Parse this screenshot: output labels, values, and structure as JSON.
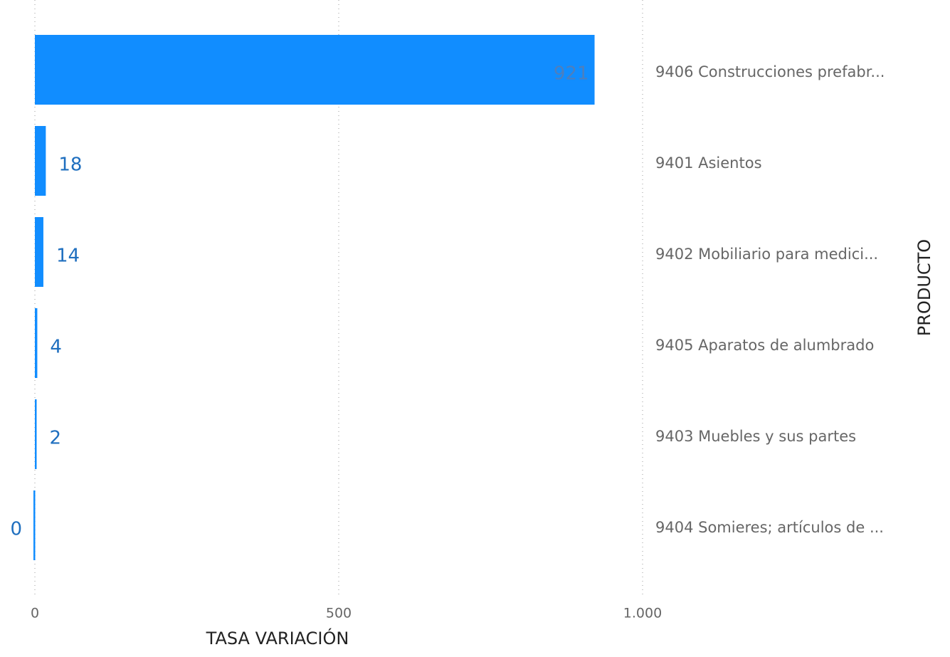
{
  "chart_data": {
    "type": "bar",
    "orientation": "horizontal",
    "categories": [
      "9406 Construcciones prefabr...",
      "9401 Asientos",
      "9402 Mobiliario para medici...",
      "9405 Aparatos de alumbrado",
      "9403 Muebles y sus partes",
      "9404 Somieres; artículos de ..."
    ],
    "values": [
      921,
      18,
      14,
      4,
      2,
      0
    ],
    "color": "#118dff",
    "xlim": [
      0,
      1000
    ],
    "xticks": [
      0,
      500,
      {
        "value": 1000,
        "label": "1.000"
      }
    ],
    "xlabel": "TASA VARIACIÓN",
    "ylabel": "PRODUCTO",
    "grid": true
  }
}
